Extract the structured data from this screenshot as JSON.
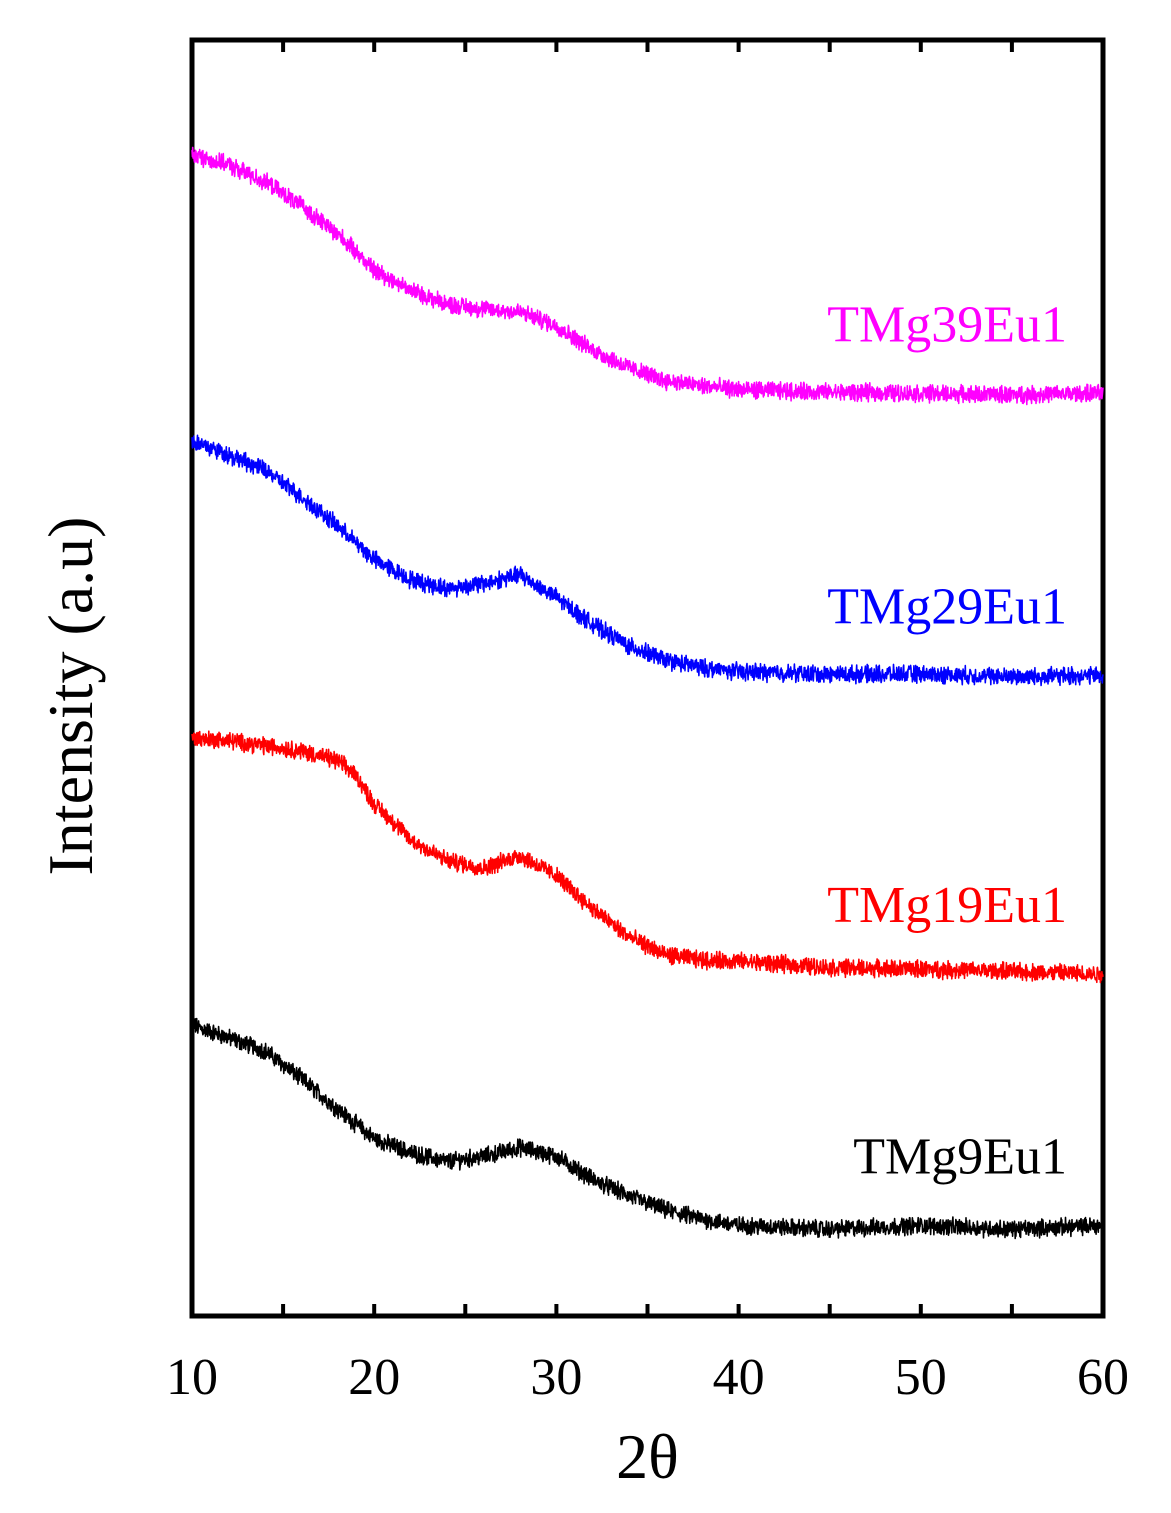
{
  "chart_data": {
    "type": "line",
    "title": "",
    "xlabel": "2θ",
    "ylabel": "Intensity (a.u)",
    "xlim": [
      10,
      60
    ],
    "ylim": [
      0,
      100
    ],
    "xticks": [
      10,
      20,
      30,
      40,
      50,
      60
    ],
    "x_tick_labels": [
      "10",
      "20",
      "30",
      "40",
      "50",
      "60"
    ],
    "y_ticks_shown": false,
    "grid": false,
    "legend": "inline labels at right",
    "series": [
      {
        "name": "TMg9Eu1",
        "color": "#000000",
        "x": [
          10,
          12,
          14,
          16,
          18,
          20,
          22,
          24,
          26,
          28,
          30,
          32,
          34,
          36,
          38,
          40,
          45,
          50,
          55,
          60
        ],
        "values": [
          22.8,
          21.8,
          20.8,
          18.6,
          16.2,
          13.9,
          12.8,
          12.1,
          12.5,
          13.2,
          12.5,
          10.7,
          9.4,
          8.3,
          7.6,
          7.1,
          6.8,
          7.1,
          6.8,
          7.1
        ]
      },
      {
        "name": "TMg19Eu1",
        "color": "#ff0000",
        "x": [
          10,
          12,
          14,
          16,
          18,
          19,
          20,
          21,
          22,
          24,
          26,
          28,
          30,
          32,
          34,
          36,
          38,
          40,
          45,
          50,
          55,
          60
        ],
        "values": [
          45.3,
          45.1,
          44.7,
          44.3,
          43.5,
          42.4,
          40.1,
          38.8,
          37.3,
          35.7,
          35.1,
          36.1,
          34.5,
          31.9,
          29.7,
          28.3,
          27.9,
          27.8,
          27.3,
          27.2,
          27.0,
          26.8
        ]
      },
      {
        "name": "TMg29Eu1",
        "color": "#0000ff",
        "x": [
          10,
          12,
          14,
          16,
          18,
          20,
          22,
          24,
          26,
          28,
          30,
          32,
          34,
          36,
          38,
          40,
          45,
          50,
          55,
          60
        ],
        "values": [
          68.6,
          67.5,
          66.3,
          64.2,
          61.9,
          59.3,
          57.7,
          57.0,
          57.4,
          58.1,
          56.3,
          54.2,
          52.5,
          51.4,
          50.8,
          50.5,
          50.3,
          50.3,
          50.1,
          50.2
        ]
      },
      {
        "name": "TMg39Eu1",
        "color": "#ff00ff",
        "x": [
          10,
          12,
          14,
          16,
          18,
          20,
          22,
          24,
          26,
          28,
          30,
          32,
          34,
          36,
          38,
          40,
          45,
          50,
          55,
          60
        ],
        "values": [
          91.0,
          90.2,
          88.9,
          87.0,
          84.8,
          82.0,
          80.4,
          79.3,
          78.9,
          78.7,
          77.6,
          75.7,
          74.3,
          73.3,
          72.9,
          72.6,
          72.4,
          72.3,
          72.2,
          72.3
        ]
      }
    ]
  }
}
